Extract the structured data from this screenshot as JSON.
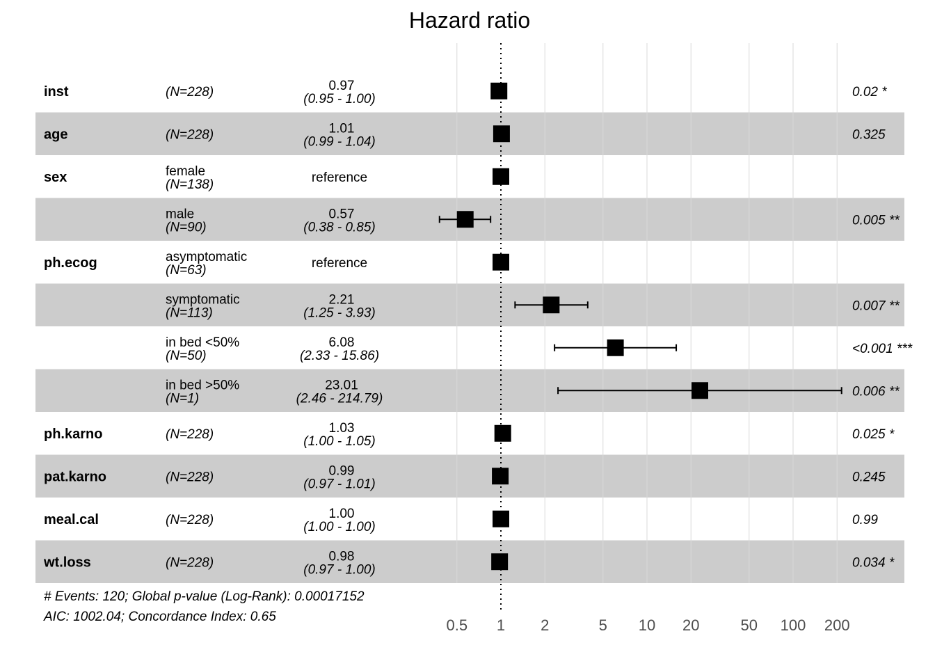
{
  "chart_data": {
    "type": "forest",
    "title": "Hazard ratio",
    "x_scale": "log",
    "xlim": [
      0.4,
      230
    ],
    "x_ticks": [
      0.5,
      1,
      2,
      5,
      10,
      20,
      50,
      100,
      200
    ],
    "x_tick_labels": [
      "0.5",
      "1",
      "2",
      "5",
      "10",
      "20",
      "50",
      "100",
      "200"
    ],
    "reference_line": 1,
    "rows": [
      {
        "variable": "inst",
        "level": "",
        "n": "(N=228)",
        "hr": 0.97,
        "lower": 0.95,
        "upper": 1.0,
        "est_text": "0.97",
        "ci_text": "(0.95 -   1.00)",
        "p_text": "0.02 *"
      },
      {
        "variable": "age",
        "level": "",
        "n": "(N=228)",
        "hr": 1.01,
        "lower": 0.99,
        "upper": 1.04,
        "est_text": "1.01",
        "ci_text": "(0.99 -   1.04)",
        "p_text": "0.325"
      },
      {
        "variable": "sex",
        "level": "female",
        "n": "(N=138)",
        "hr": 1,
        "lower": null,
        "upper": null,
        "est_text": "reference",
        "ci_text": "",
        "p_text": ""
      },
      {
        "variable": "",
        "level": "male",
        "n": "(N=90)",
        "hr": 0.57,
        "lower": 0.38,
        "upper": 0.85,
        "est_text": "0.57",
        "ci_text": "(0.38 -   0.85)",
        "p_text": "0.005 **"
      },
      {
        "variable": "ph.ecog",
        "level": "asymptomatic",
        "n": "(N=63)",
        "hr": 1,
        "lower": null,
        "upper": null,
        "est_text": "reference",
        "ci_text": "",
        "p_text": ""
      },
      {
        "variable": "",
        "level": "symptomatic",
        "n": "(N=113)",
        "hr": 2.21,
        "lower": 1.25,
        "upper": 3.93,
        "est_text": "2.21",
        "ci_text": "(1.25 -   3.93)",
        "p_text": "0.007 **"
      },
      {
        "variable": "",
        "level": "in bed <50%",
        "n": "(N=50)",
        "hr": 6.08,
        "lower": 2.33,
        "upper": 15.86,
        "est_text": "6.08",
        "ci_text": "(2.33 -  15.86)",
        "p_text": "<0.001 ***"
      },
      {
        "variable": "",
        "level": "in bed >50%",
        "n": "(N=1)",
        "hr": 23.01,
        "lower": 2.46,
        "upper": 214.79,
        "est_text": "23.01",
        "ci_text": "(2.46 - 214.79)",
        "p_text": "0.006 **"
      },
      {
        "variable": "ph.karno",
        "level": "",
        "n": "(N=228)",
        "hr": 1.03,
        "lower": 1.0,
        "upper": 1.05,
        "est_text": "1.03",
        "ci_text": "(1.00 -   1.05)",
        "p_text": "0.025 *"
      },
      {
        "variable": "pat.karno",
        "level": "",
        "n": "(N=228)",
        "hr": 0.99,
        "lower": 0.97,
        "upper": 1.01,
        "est_text": "0.99",
        "ci_text": "(0.97 -   1.01)",
        "p_text": "0.245"
      },
      {
        "variable": "meal.cal",
        "level": "",
        "n": "(N=228)",
        "hr": 1.0,
        "lower": 1.0,
        "upper": 1.0,
        "est_text": "1.00",
        "ci_text": "(1.00 -   1.00)",
        "p_text": "0.99"
      },
      {
        "variable": "wt.loss",
        "level": "",
        "n": "(N=228)",
        "hr": 0.98,
        "lower": 0.97,
        "upper": 1.0,
        "est_text": "0.98",
        "ci_text": "(0.97 -   1.00)",
        "p_text": "0.034 *"
      }
    ],
    "footnotes": [
      "# Events: 120; Global p-value (Log-Rank): 0.00017152",
      "AIC: 1002.04; Concordance Index: 0.65"
    ]
  },
  "colors": {
    "band": "#cccccc",
    "grid": "#d9d9d9",
    "marker": "#000000",
    "tick_text": "#4d4d4d"
  }
}
